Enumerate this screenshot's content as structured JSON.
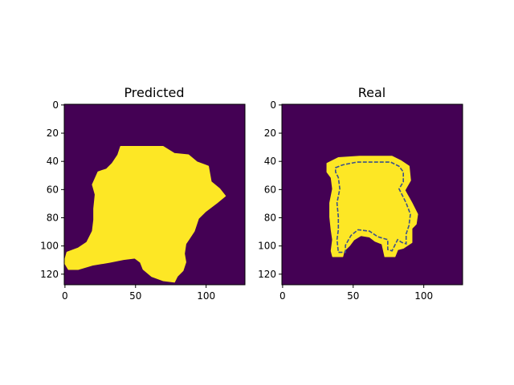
{
  "figure": {
    "background": "#ffffff"
  },
  "colors": {
    "background_class": "#440154",
    "foreground_class": "#fde725",
    "contour": "#3b528b",
    "axis": "#000000"
  },
  "chart_data": [
    {
      "type": "heatmap",
      "title": "Predicted",
      "xlabel": "",
      "ylabel": "",
      "grid": false,
      "image_size": [
        128,
        128
      ],
      "xlim": [
        0,
        128
      ],
      "ylim": [
        128,
        0
      ],
      "xticks": [
        0,
        50,
        100
      ],
      "yticks": [
        0,
        20,
        40,
        60,
        80,
        100,
        120
      ],
      "mask_description_values": "binary mask; approximate boundary polygon in data units (x, y)",
      "mask_outline": [
        [
          40,
          30
        ],
        [
          70,
          30
        ],
        [
          78,
          35
        ],
        [
          88,
          36
        ],
        [
          94,
          41
        ],
        [
          102,
          44
        ],
        [
          104,
          55
        ],
        [
          110,
          60
        ],
        [
          114,
          65
        ],
        [
          108,
          70
        ],
        [
          100,
          76
        ],
        [
          95,
          81
        ],
        [
          92,
          90
        ],
        [
          88,
          96
        ],
        [
          86,
          99
        ],
        [
          85,
          106
        ],
        [
          86,
          112
        ],
        [
          84,
          118
        ],
        [
          80,
          122
        ],
        [
          78,
          126
        ],
        [
          70,
          125
        ],
        [
          62,
          122
        ],
        [
          56,
          117
        ],
        [
          54,
          112
        ],
        [
          50,
          109
        ],
        [
          42,
          110
        ],
        [
          32,
          112
        ],
        [
          20,
          114
        ],
        [
          10,
          117
        ],
        [
          3,
          117
        ],
        [
          0,
          112
        ],
        [
          2,
          105
        ],
        [
          10,
          102
        ],
        [
          16,
          98
        ],
        [
          20,
          90
        ],
        [
          21,
          82
        ],
        [
          21,
          74
        ],
        [
          22,
          64
        ],
        [
          20,
          57
        ],
        [
          24,
          48
        ],
        [
          30,
          46
        ],
        [
          34,
          42
        ],
        [
          38,
          36
        ]
      ]
    },
    {
      "type": "heatmap",
      "title": "Real",
      "xlabel": "",
      "ylabel": "",
      "grid": false,
      "image_size": [
        128,
        128
      ],
      "xlim": [
        0,
        128
      ],
      "ylim": [
        128,
        0
      ],
      "xticks": [
        0,
        50,
        100
      ],
      "yticks": [
        0,
        20,
        40,
        60,
        80,
        100,
        120
      ],
      "mask_description_values": "binary mask; approximate boundary polygon in data units (x, y)",
      "mask_outline": [
        [
          32,
          42
        ],
        [
          40,
          38
        ],
        [
          55,
          37
        ],
        [
          65,
          37
        ],
        [
          78,
          37
        ],
        [
          84,
          40
        ],
        [
          90,
          44
        ],
        [
          91,
          54
        ],
        [
          87,
          61
        ],
        [
          92,
          70
        ],
        [
          96,
          78
        ],
        [
          95,
          85
        ],
        [
          92,
          88
        ],
        [
          92,
          98
        ],
        [
          89,
          100
        ],
        [
          86,
          102
        ],
        [
          82,
          103
        ],
        [
          80,
          108
        ],
        [
          73,
          108
        ],
        [
          71,
          99
        ],
        [
          66,
          97
        ],
        [
          62,
          94
        ],
        [
          56,
          93
        ],
        [
          51,
          96
        ],
        [
          48,
          100
        ],
        [
          44,
          104
        ],
        [
          43,
          108
        ],
        [
          36,
          108
        ],
        [
          35,
          104
        ],
        [
          36,
          96
        ],
        [
          35,
          89
        ],
        [
          34,
          80
        ],
        [
          34,
          70
        ],
        [
          36,
          60
        ],
        [
          35,
          52
        ],
        [
          32,
          48
        ]
      ],
      "inner_contour": [
        [
          38,
          45
        ],
        [
          43,
          43
        ],
        [
          53,
          41
        ],
        [
          65,
          41
        ],
        [
          77,
          41
        ],
        [
          83,
          44
        ],
        [
          86,
          48
        ],
        [
          86,
          55
        ],
        [
          83,
          60
        ],
        [
          88,
          70
        ],
        [
          91,
          78
        ],
        [
          90,
          86
        ],
        [
          88,
          92
        ],
        [
          88,
          99
        ],
        [
          85,
          98
        ],
        [
          82,
          96
        ],
        [
          78,
          104
        ],
        [
          75,
          103
        ],
        [
          75,
          96
        ],
        [
          68,
          94
        ],
        [
          62,
          90
        ],
        [
          54,
          89
        ],
        [
          49,
          93
        ],
        [
          45,
          100
        ],
        [
          45,
          105
        ],
        [
          40,
          105
        ],
        [
          39,
          96
        ],
        [
          40,
          89
        ],
        [
          40,
          80
        ],
        [
          39,
          70
        ],
        [
          41,
          60
        ],
        [
          40,
          52
        ],
        [
          38,
          48
        ]
      ]
    }
  ]
}
